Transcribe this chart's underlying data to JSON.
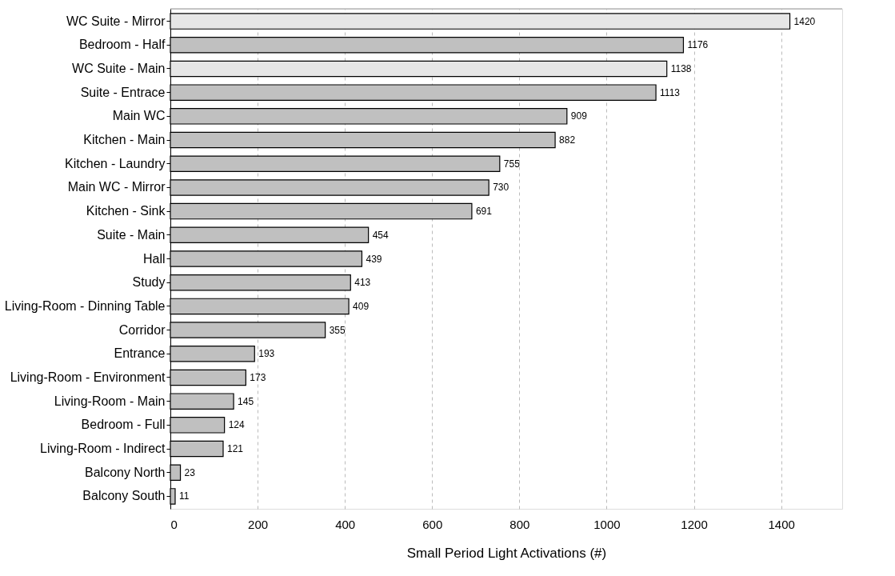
{
  "chart_data": {
    "type": "bar",
    "orientation": "horizontal",
    "xlabel": "Small Period Light Activations (#)",
    "categories": [
      "WC Suite - Mirror",
      "Bedroom - Half",
      "WC Suite - Main",
      "Suite - Entrace",
      "Main WC",
      "Kitchen - Main",
      "Kitchen - Laundry",
      "Main WC - Mirror",
      "Kitchen - Sink",
      "Suite - Main",
      "Hall",
      "Study",
      "Living-Room - Dinning Table",
      "Corridor",
      "Entrance",
      "Living-Room - Environment",
      "Living-Room - Main",
      "Bedroom - Full",
      "Living-Room - Indirect",
      "Balcony North",
      "Balcony South"
    ],
    "values": [
      1420,
      1176,
      1138,
      1113,
      909,
      882,
      755,
      730,
      691,
      454,
      439,
      413,
      409,
      355,
      193,
      173,
      145,
      124,
      121,
      23,
      11
    ],
    "colors": [
      "#e6e6e6",
      "#c0c0c0",
      "#e6e6e6",
      "#c0c0c0",
      "#c0c0c0",
      "#c0c0c0",
      "#c0c0c0",
      "#c0c0c0",
      "#c0c0c0",
      "#c0c0c0",
      "#c0c0c0",
      "#c0c0c0",
      "#c0c0c0",
      "#c0c0c0",
      "#c0c0c0",
      "#c0c0c0",
      "#c0c0c0",
      "#c0c0c0",
      "#c0c0c0",
      "#c0c0c0",
      "#c0c0c0"
    ],
    "xlim": [
      0,
      1540
    ],
    "xticks": [
      0,
      200,
      400,
      600,
      800,
      1000,
      1200,
      1400
    ],
    "grid": "x",
    "data_labels": true
  }
}
